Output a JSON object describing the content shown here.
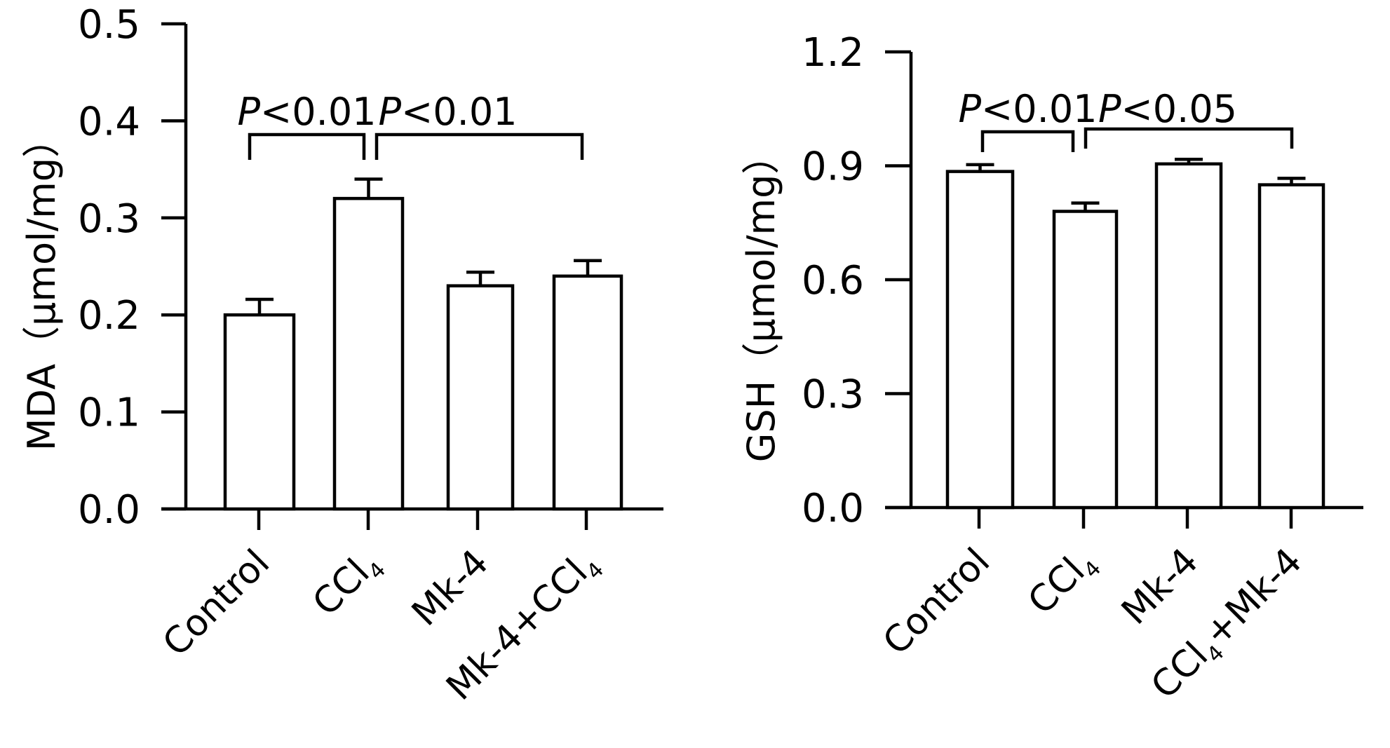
{
  "chart_data": [
    {
      "type": "bar",
      "title": "",
      "xlabel": "",
      "ylabel": "MDA（μmol/mg）",
      "ylim": [
        0,
        0.5
      ],
      "yticks": [
        "0.0",
        "0.1",
        "0.2",
        "0.3",
        "0.4",
        "0.5"
      ],
      "ytick_values": [
        0,
        0.1,
        0.2,
        0.3,
        0.4,
        0.5
      ],
      "categories": [
        {
          "main": "Control",
          "sub": ""
        },
        {
          "main": "CCl",
          "sub": "4"
        },
        {
          "main": "Mk-4",
          "sub": ""
        },
        {
          "main": "Mk-4+CCl",
          "sub": "4"
        }
      ],
      "values": [
        0.2,
        0.32,
        0.23,
        0.24
      ],
      "errors": [
        0.016,
        0.02,
        0.014,
        0.016
      ],
      "annotations": [
        {
          "text_italic": "P",
          "text": "<0.01",
          "from": 0,
          "to": 1,
          "level": 0.375
        },
        {
          "text_italic": "P",
          "text": "<0.01",
          "from": 1,
          "to": 3,
          "level": 0.375
        }
      ]
    },
    {
      "type": "bar",
      "title": "",
      "xlabel": "",
      "ylabel": "GSH（μmol/mg）",
      "ylim": [
        0,
        1.2
      ],
      "yticks": [
        "0.0",
        "0.3",
        "0.6",
        "0.9",
        "1.2"
      ],
      "ytick_values": [
        0,
        0.3,
        0.6,
        0.9,
        1.2
      ],
      "categories": [
        {
          "main": "Control",
          "sub": ""
        },
        {
          "main": "CCl",
          "sub": "4"
        },
        {
          "main": "Mk-4",
          "sub": ""
        },
        {
          "main": "CCl",
          "sub": "4",
          "after": "+Mk-4"
        }
      ],
      "values": [
        0.885,
        0.78,
        0.905,
        0.85
      ],
      "errors": [
        0.018,
        0.022,
        0.012,
        0.017
      ],
      "annotations": [
        {
          "text_italic": "P",
          "text": "<0.01",
          "from": 0,
          "to": 1,
          "level": 1.01
        },
        {
          "text_italic": "P",
          "text": "<0.05",
          "from": 1,
          "to": 3,
          "level": 1.02
        }
      ]
    }
  ]
}
